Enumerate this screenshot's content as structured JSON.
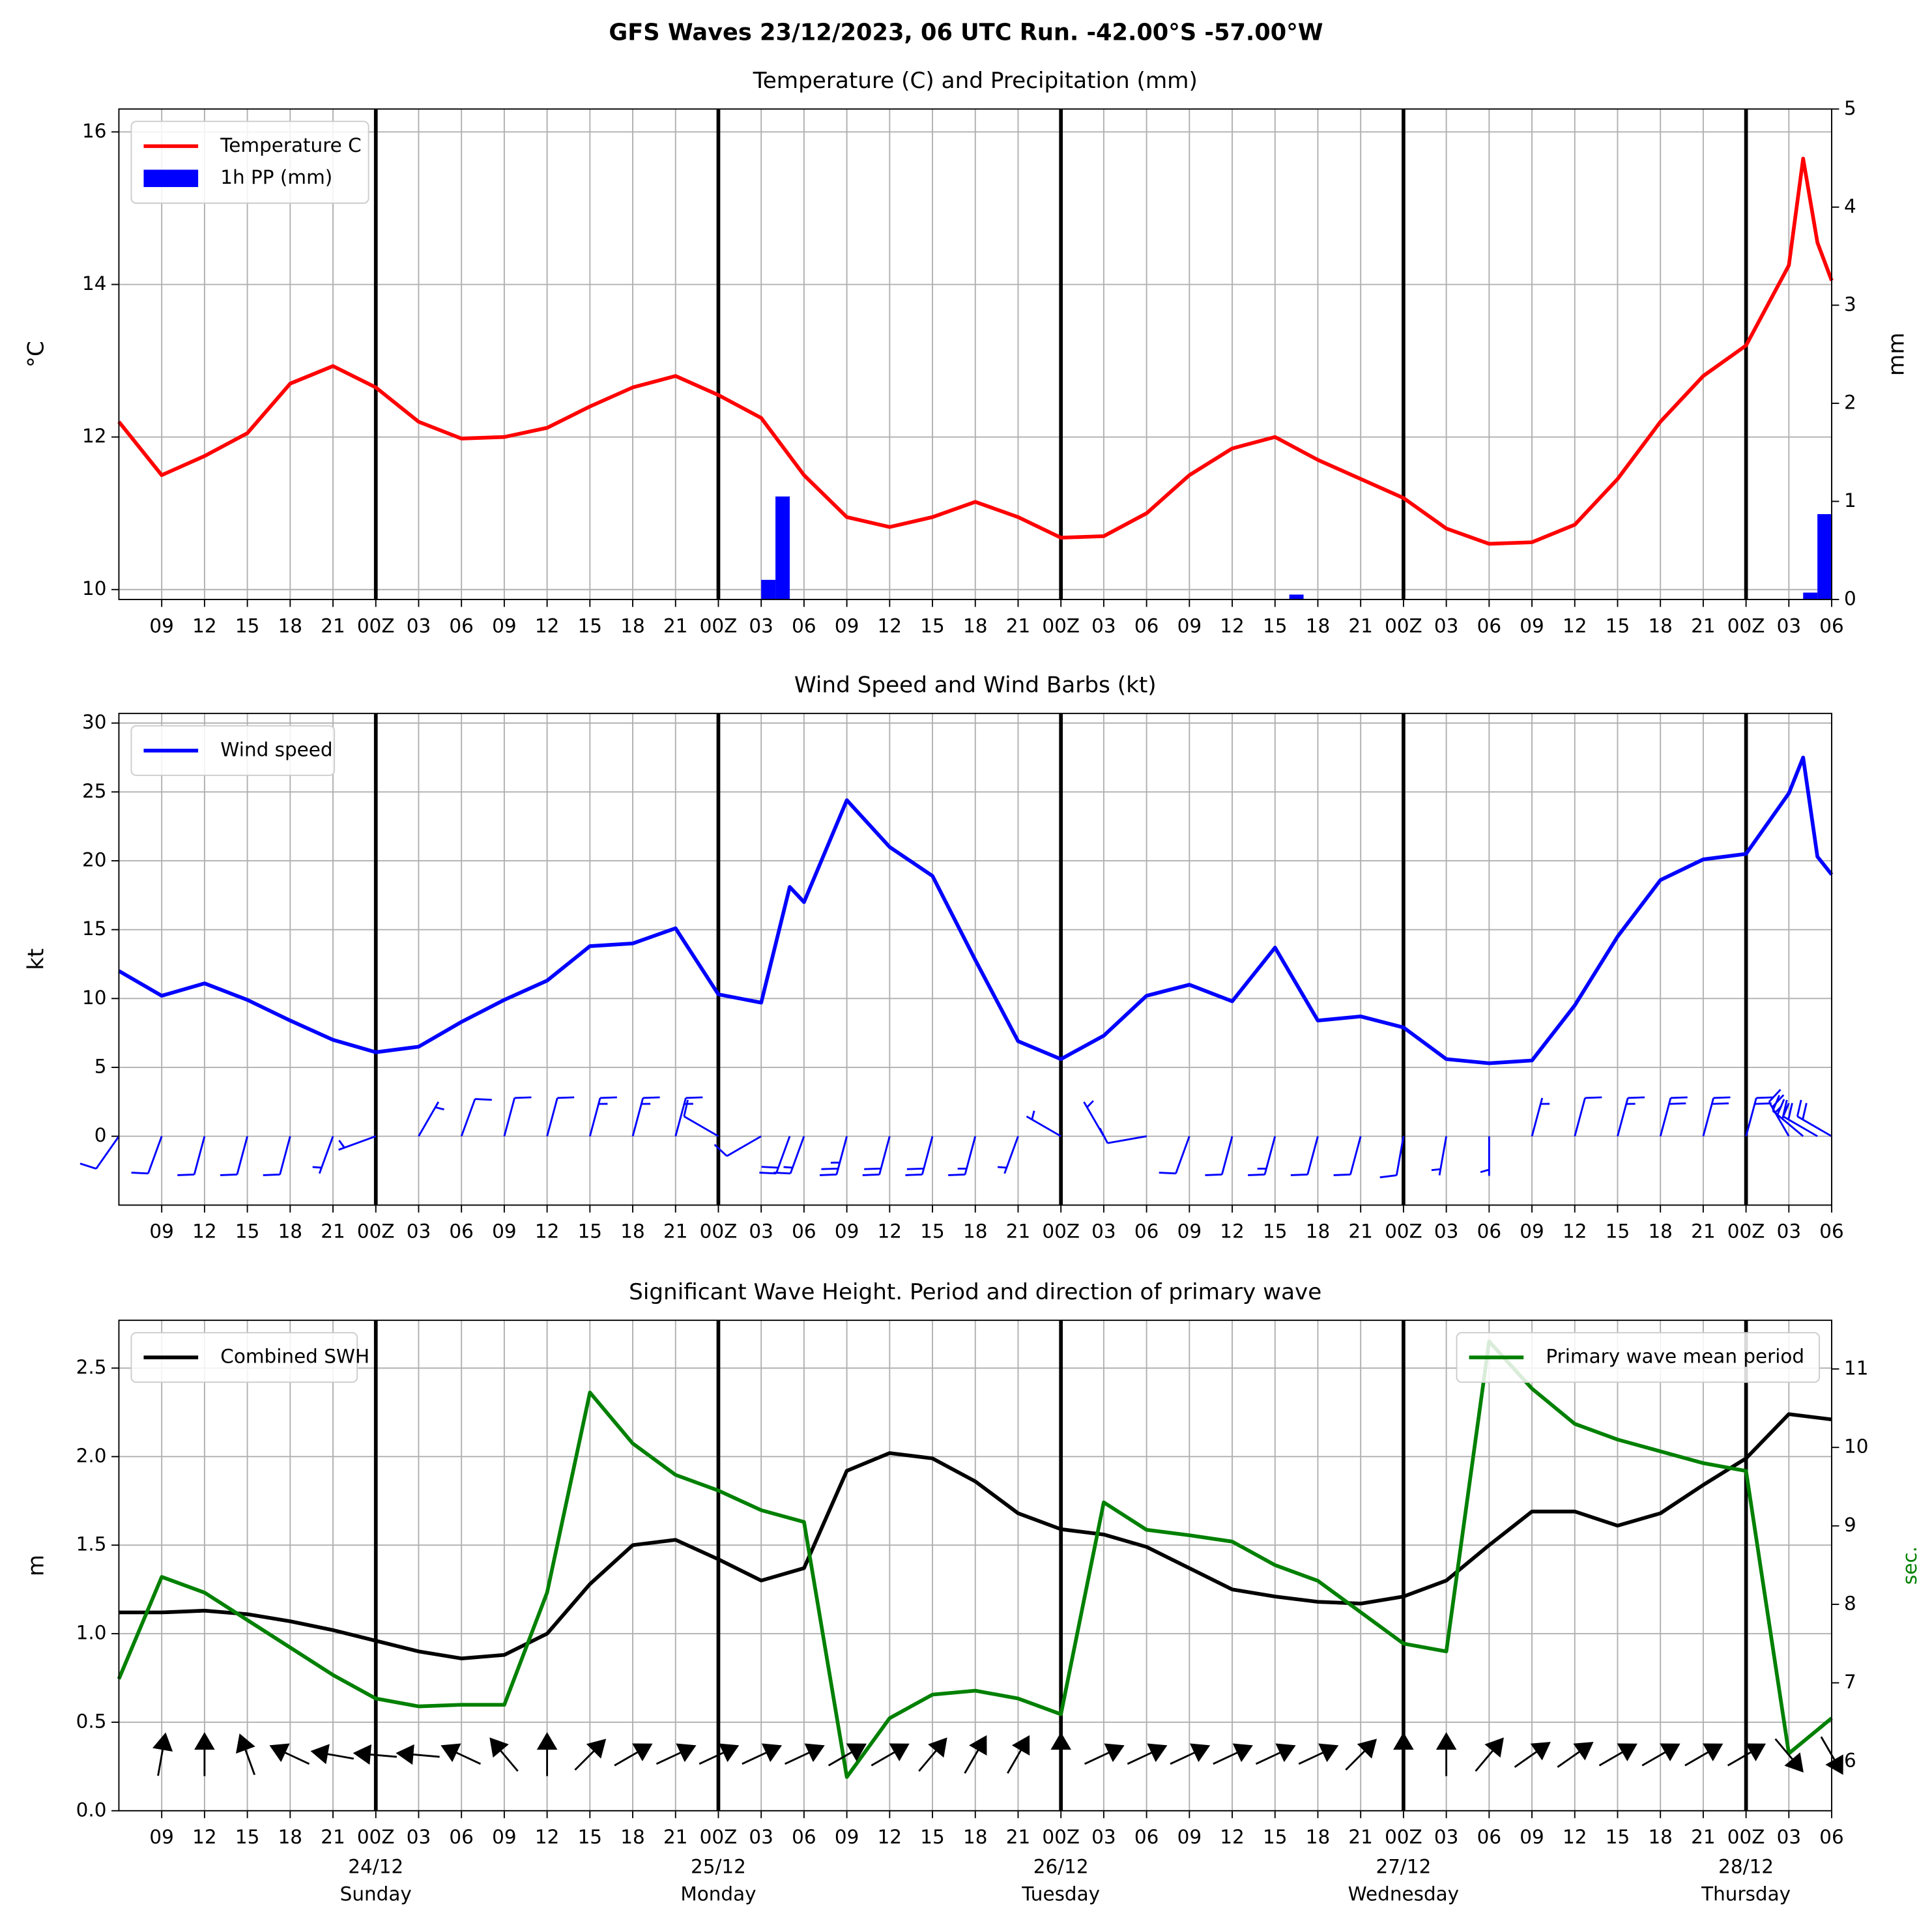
{
  "title": "GFS Waves 23/12/2023, 06 UTC Run. -42.00°S -57.00°W",
  "chart_data": [
    {
      "type": "line",
      "title": "Temperature (C) and Precipitation (mm)",
      "ylabel": "°C",
      "y2label": "mm",
      "xlim": [
        0,
        120
      ],
      "xticks": [
        {
          "value": 3,
          "label": "09"
        },
        {
          "value": 6,
          "label": "12"
        },
        {
          "value": 9,
          "label": "15"
        },
        {
          "value": 12,
          "label": "18"
        },
        {
          "value": 15,
          "label": "21"
        },
        {
          "value": 18,
          "label": "00Z"
        },
        {
          "value": 21,
          "label": "03"
        },
        {
          "value": 24,
          "label": "06"
        },
        {
          "value": 27,
          "label": "09"
        },
        {
          "value": 30,
          "label": "12"
        },
        {
          "value": 33,
          "label": "15"
        },
        {
          "value": 36,
          "label": "18"
        },
        {
          "value": 39,
          "label": "21"
        },
        {
          "value": 42,
          "label": "00Z"
        },
        {
          "value": 45,
          "label": "03"
        },
        {
          "value": 48,
          "label": "06"
        },
        {
          "value": 51,
          "label": "09"
        },
        {
          "value": 54,
          "label": "12"
        },
        {
          "value": 57,
          "label": "15"
        },
        {
          "value": 60,
          "label": "18"
        },
        {
          "value": 63,
          "label": "21"
        },
        {
          "value": 66,
          "label": "00Z"
        },
        {
          "value": 69,
          "label": "03"
        },
        {
          "value": 72,
          "label": "06"
        },
        {
          "value": 75,
          "label": "09"
        },
        {
          "value": 78,
          "label": "12"
        },
        {
          "value": 81,
          "label": "15"
        },
        {
          "value": 84,
          "label": "18"
        },
        {
          "value": 87,
          "label": "21"
        },
        {
          "value": 90,
          "label": "00Z"
        },
        {
          "value": 93,
          "label": "03"
        },
        {
          "value": 96,
          "label": "06"
        },
        {
          "value": 99,
          "label": "09"
        },
        {
          "value": 102,
          "label": "12"
        },
        {
          "value": 105,
          "label": "15"
        },
        {
          "value": 108,
          "label": "18"
        },
        {
          "value": 111,
          "label": "21"
        },
        {
          "value": 114,
          "label": "00Z"
        },
        {
          "value": 117,
          "label": "03"
        },
        {
          "value": 120,
          "label": "06"
        }
      ],
      "ylim": [
        9.87,
        16.3
      ],
      "yticks": [
        10,
        12,
        14,
        16
      ],
      "y2lim": [
        0,
        5
      ],
      "y2ticks": [
        0,
        1,
        2,
        3,
        4,
        5
      ],
      "grid": true,
      "legend": "upper left",
      "day_lines": [
        18,
        42,
        66,
        90,
        114
      ],
      "series": [
        {
          "name": "Temperature C",
          "type": "line",
          "color": "#ff0000",
          "x": [
            0,
            3,
            6,
            9,
            12,
            15,
            18,
            21,
            24,
            27,
            30,
            33,
            36,
            39,
            42,
            45,
            48,
            51,
            54,
            57,
            60,
            63,
            66,
            69,
            72,
            75,
            78,
            81,
            84,
            87,
            90,
            93,
            96,
            99,
            102,
            105,
            108,
            111,
            114,
            117,
            118,
            119,
            120
          ],
          "values": [
            12.2,
            11.5,
            11.75,
            12.05,
            12.7,
            12.93,
            12.65,
            12.2,
            11.98,
            12.0,
            12.12,
            12.4,
            12.65,
            12.8,
            12.55,
            12.25,
            11.5,
            10.95,
            10.82,
            10.95,
            11.15,
            10.95,
            10.68,
            10.7,
            11.0,
            11.5,
            11.85,
            12.0,
            11.7,
            11.45,
            11.2,
            10.8,
            10.6,
            10.62,
            10.85,
            11.45,
            12.2,
            12.8,
            13.2,
            14.25,
            15.65,
            14.55,
            14.05
          ]
        },
        {
          "name": "1h PP (mm)",
          "type": "bar",
          "color": "#0000ff",
          "axis": "y2",
          "x": [
            45.5,
            46.5,
            82.5,
            118.5,
            119.5
          ],
          "values": [
            0.2,
            1.05,
            0.05,
            0.07,
            0.87
          ]
        }
      ]
    },
    {
      "type": "line",
      "title": "Wind Speed and Wind Barbs (kt)",
      "ylabel": "kt",
      "xlim": [
        0,
        120
      ],
      "xticks": [
        {
          "value": 3,
          "label": "09"
        },
        {
          "value": 6,
          "label": "12"
        },
        {
          "value": 9,
          "label": "15"
        },
        {
          "value": 12,
          "label": "18"
        },
        {
          "value": 15,
          "label": "21"
        },
        {
          "value": 18,
          "label": "00Z"
        },
        {
          "value": 21,
          "label": "03"
        },
        {
          "value": 24,
          "label": "06"
        },
        {
          "value": 27,
          "label": "09"
        },
        {
          "value": 30,
          "label": "12"
        },
        {
          "value": 33,
          "label": "15"
        },
        {
          "value": 36,
          "label": "18"
        },
        {
          "value": 39,
          "label": "21"
        },
        {
          "value": 42,
          "label": "00Z"
        },
        {
          "value": 45,
          "label": "03"
        },
        {
          "value": 48,
          "label": "06"
        },
        {
          "value": 51,
          "label": "09"
        },
        {
          "value": 54,
          "label": "12"
        },
        {
          "value": 57,
          "label": "15"
        },
        {
          "value": 60,
          "label": "18"
        },
        {
          "value": 63,
          "label": "21"
        },
        {
          "value": 66,
          "label": "00Z"
        },
        {
          "value": 69,
          "label": "03"
        },
        {
          "value": 72,
          "label": "06"
        },
        {
          "value": 75,
          "label": "09"
        },
        {
          "value": 78,
          "label": "12"
        },
        {
          "value": 81,
          "label": "15"
        },
        {
          "value": 84,
          "label": "18"
        },
        {
          "value": 87,
          "label": "21"
        },
        {
          "value": 90,
          "label": "00Z"
        },
        {
          "value": 93,
          "label": "03"
        },
        {
          "value": 96,
          "label": "06"
        },
        {
          "value": 99,
          "label": "09"
        },
        {
          "value": 102,
          "label": "12"
        },
        {
          "value": 105,
          "label": "15"
        },
        {
          "value": 108,
          "label": "18"
        },
        {
          "value": 111,
          "label": "21"
        },
        {
          "value": 114,
          "label": "00Z"
        },
        {
          "value": 117,
          "label": "03"
        },
        {
          "value": 120,
          "label": "06"
        }
      ],
      "ylim": [
        -5,
        30.7
      ],
      "yticks": [
        0,
        5,
        10,
        15,
        20,
        25,
        30
      ],
      "grid": true,
      "legend": "upper left",
      "day_lines": [
        18,
        42,
        66,
        90,
        114
      ],
      "series": [
        {
          "name": "Wind speed",
          "type": "line",
          "color": "#0000ff",
          "direction_style": "barb",
          "x": [
            0,
            3,
            6,
            9,
            12,
            15,
            18,
            21,
            24,
            27,
            30,
            33,
            36,
            39,
            42,
            45,
            47,
            48,
            51,
            54,
            57,
            60,
            63,
            66,
            69,
            72,
            75,
            78,
            81,
            84,
            87,
            90,
            93,
            96,
            99,
            102,
            105,
            108,
            111,
            114,
            117,
            118,
            119,
            120
          ],
          "values": [
            12.0,
            10.2,
            11.1,
            9.9,
            8.4,
            7.0,
            6.1,
            6.5,
            8.3,
            9.9,
            11.3,
            13.8,
            14.0,
            15.1,
            10.3,
            9.7,
            18.1,
            17.0,
            24.4,
            21.0,
            18.9,
            12.8,
            6.9,
            5.6,
            7.3,
            10.2,
            11.0,
            9.8,
            13.7,
            8.4,
            8.7,
            7.9,
            5.6,
            5.3,
            5.5,
            9.5,
            14.5,
            18.6,
            20.1,
            20.5,
            24.9,
            27.5,
            20.3,
            19.0
          ],
          "directions": [
            215,
            200,
            195,
            195,
            195,
            200,
            250,
            30,
            20,
            15,
            15,
            15,
            15,
            15,
            300,
            240,
            200,
            200,
            195,
            195,
            195,
            195,
            200,
            300,
            330,
            260,
            200,
            195,
            195,
            195,
            195,
            190,
            190,
            180,
            15,
            15,
            15,
            15,
            15,
            15,
            330,
            310,
            300,
            300
          ]
        }
      ]
    },
    {
      "type": "line",
      "title": "Significant Wave Height. Period and direction of primary wave",
      "ylabel": "m",
      "y2label": "sec.",
      "y2label_color": "#008000",
      "xlim": [
        0,
        120
      ],
      "xticks": [
        {
          "value": 3,
          "label": "09"
        },
        {
          "value": 6,
          "label": "12"
        },
        {
          "value": 9,
          "label": "15"
        },
        {
          "value": 12,
          "label": "18"
        },
        {
          "value": 15,
          "label": "21"
        },
        {
          "value": 18,
          "label": "00Z"
        },
        {
          "value": 21,
          "label": "03"
        },
        {
          "value": 24,
          "label": "06"
        },
        {
          "value": 27,
          "label": "09"
        },
        {
          "value": 30,
          "label": "12"
        },
        {
          "value": 33,
          "label": "15"
        },
        {
          "value": 36,
          "label": "18"
        },
        {
          "value": 39,
          "label": "21"
        },
        {
          "value": 42,
          "label": "00Z"
        },
        {
          "value": 45,
          "label": "03"
        },
        {
          "value": 48,
          "label": "06"
        },
        {
          "value": 51,
          "label": "09"
        },
        {
          "value": 54,
          "label": "12"
        },
        {
          "value": 57,
          "label": "15"
        },
        {
          "value": 60,
          "label": "18"
        },
        {
          "value": 63,
          "label": "21"
        },
        {
          "value": 66,
          "label": "00Z"
        },
        {
          "value": 69,
          "label": "03"
        },
        {
          "value": 72,
          "label": "06"
        },
        {
          "value": 75,
          "label": "09"
        },
        {
          "value": 78,
          "label": "12"
        },
        {
          "value": 81,
          "label": "15"
        },
        {
          "value": 84,
          "label": "18"
        },
        {
          "value": 87,
          "label": "21"
        },
        {
          "value": 90,
          "label": "00Z"
        },
        {
          "value": 93,
          "label": "03"
        },
        {
          "value": 96,
          "label": "06"
        },
        {
          "value": 99,
          "label": "09"
        },
        {
          "value": 102,
          "label": "12"
        },
        {
          "value": 105,
          "label": "15"
        },
        {
          "value": 108,
          "label": "18"
        },
        {
          "value": 111,
          "label": "21"
        },
        {
          "value": 114,
          "label": "00Z"
        },
        {
          "value": 117,
          "label": "03"
        },
        {
          "value": 120,
          "label": "06"
        }
      ],
      "ylim": [
        0,
        2.77
      ],
      "yticks": [
        {
          "value": 0,
          "label": "0.0"
        },
        0.5,
        {
          "value": 1,
          "label": "1.0"
        },
        1.5,
        {
          "value": 2,
          "label": "2.0"
        },
        2.5
      ],
      "y2lim": [
        5.37,
        11.62
      ],
      "y2ticks": [
        6,
        7,
        8,
        9,
        10,
        11
      ],
      "grid": true,
      "legend": "upper left",
      "y2_legend": "upper right",
      "day_lines": [
        18,
        42,
        66,
        90,
        114
      ],
      "date_labels": [
        {
          "value": 18,
          "date": "24/12",
          "day": "Sunday"
        },
        {
          "value": 42,
          "date": "25/12",
          "day": "Monday"
        },
        {
          "value": 66,
          "date": "26/12",
          "day": "Tuesday"
        },
        {
          "value": 90,
          "date": "27/12",
          "day": "Wednesday"
        },
        {
          "value": 114,
          "date": "28/12",
          "day": "Thursday"
        }
      ],
      "series": [
        {
          "name": "Combined SWH",
          "type": "line",
          "color": "#000000",
          "x": [
            0,
            3,
            6,
            9,
            12,
            15,
            18,
            21,
            24,
            27,
            30,
            33,
            36,
            39,
            42,
            45,
            48,
            51,
            54,
            57,
            60,
            63,
            66,
            69,
            72,
            75,
            78,
            81,
            84,
            87,
            90,
            93,
            96,
            99,
            102,
            105,
            108,
            111,
            114,
            117,
            120
          ],
          "values": [
            1.12,
            1.12,
            1.13,
            1.11,
            1.07,
            1.02,
            0.96,
            0.9,
            0.86,
            0.88,
            1.0,
            1.28,
            1.5,
            1.53,
            1.42,
            1.3,
            1.37,
            1.92,
            2.02,
            1.99,
            1.86,
            1.68,
            1.59,
            1.56,
            1.49,
            1.37,
            1.25,
            1.21,
            1.18,
            1.17,
            1.21,
            1.3,
            1.5,
            1.69,
            1.69,
            1.61,
            1.68,
            1.84,
            1.99,
            2.24,
            2.21
          ]
        },
        {
          "name": "Primary wave mean period",
          "type": "line",
          "color": "#008000",
          "axis": "y2",
          "direction_style": "arrow",
          "x": [
            0,
            3,
            6,
            9,
            12,
            15,
            18,
            21,
            24,
            27,
            30,
            33,
            36,
            39,
            42,
            45,
            48,
            51,
            54,
            57,
            60,
            63,
            66,
            69,
            72,
            75,
            78,
            81,
            84,
            87,
            90,
            93,
            96,
            99,
            102,
            105,
            108,
            111,
            114,
            117,
            120
          ],
          "values": [
            7.05,
            8.35,
            8.15,
            7.8,
            7.45,
            7.1,
            6.8,
            6.7,
            6.72,
            6.72,
            8.15,
            10.7,
            10.05,
            9.65,
            9.45,
            9.2,
            9.05,
            5.8,
            6.55,
            6.85,
            6.9,
            6.8,
            6.6,
            9.3,
            8.95,
            8.88,
            8.8,
            8.5,
            8.3,
            7.9,
            7.5,
            7.4,
            11.35,
            10.75,
            10.3,
            10.1,
            9.95,
            9.8,
            9.7,
            6.1,
            6.55
          ],
          "directions": [
            null,
            10,
            0,
            340,
            295,
            280,
            275,
            275,
            295,
            320,
            0,
            45,
            60,
            65,
            65,
            65,
            65,
            60,
            60,
            40,
            30,
            30,
            0,
            65,
            65,
            65,
            65,
            65,
            65,
            45,
            0,
            0,
            40,
            55,
            55,
            60,
            60,
            60,
            60,
            140,
            150
          ]
        }
      ]
    }
  ]
}
